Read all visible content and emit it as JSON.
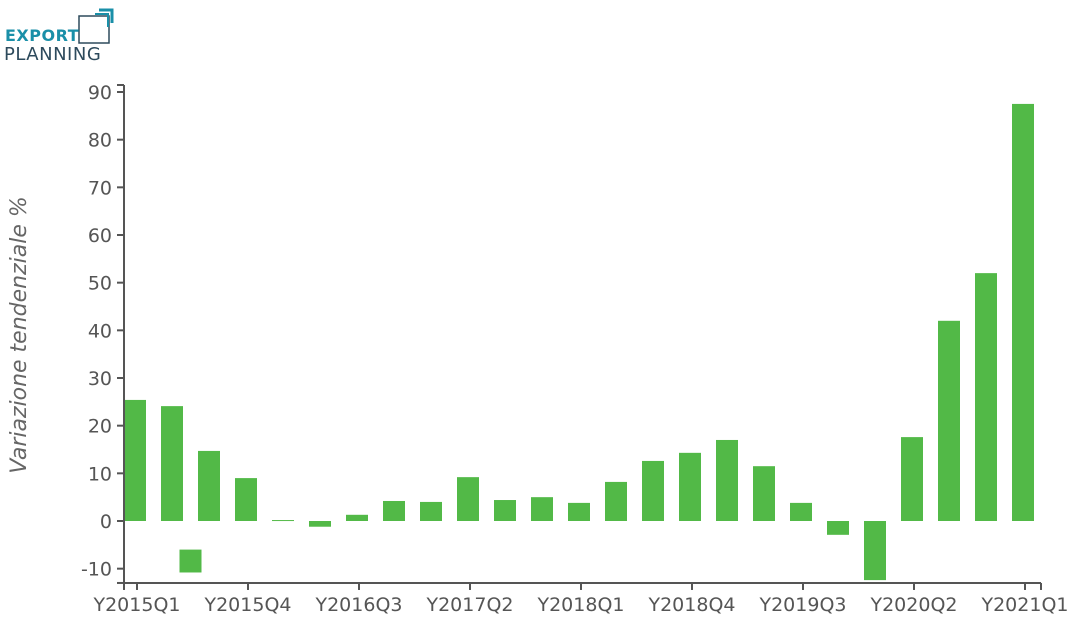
{
  "logo": {
    "line1": "EXPORT",
    "line2": "PLANNING"
  },
  "chart_data": {
    "type": "bar",
    "title": "",
    "xlabel": "",
    "ylabel": "Variazione tendenziale %",
    "ylim": [
      -13,
      92
    ],
    "yticks": [
      -10,
      0,
      10,
      20,
      30,
      40,
      50,
      60,
      70,
      80,
      90
    ],
    "grid": false,
    "bar_color": "#52b947",
    "categories": [
      "Y2015Q1",
      "Y2015Q2",
      "Y2015Q3",
      "Y2015Q4",
      "Y2016Q1",
      "Y2016Q2",
      "Y2016Q3",
      "Y2016Q4",
      "Y2017Q1",
      "Y2017Q2",
      "Y2017Q3",
      "Y2017Q4",
      "Y2018Q1",
      "Y2018Q2",
      "Y2018Q3",
      "Y2018Q4",
      "Y2019Q1",
      "Y2019Q2",
      "Y2019Q3",
      "Y2019Q4",
      "Y2020Q1",
      "Y2020Q2",
      "Y2020Q3",
      "Y2020Q4",
      "Y2021Q1"
    ],
    "xtick_labels": [
      "Y2015Q1",
      "Y2015Q4",
      "Y2016Q3",
      "Y2017Q2",
      "Y2018Q1",
      "Y2018Q4",
      "Y2019Q3",
      "Y2020Q2",
      "Y2021Q1"
    ],
    "values": [
      25.4,
      24.1,
      14.7,
      9.0,
      0.2,
      -1.2,
      1.3,
      4.2,
      4.0,
      9.2,
      4.4,
      5.0,
      3.8,
      8.2,
      12.6,
      14.3,
      17.0,
      11.5,
      3.8,
      -2.9,
      -12.4,
      17.6,
      42.0,
      52.0,
      87.5
    ],
    "floating_bar": {
      "between": [
        "Y2015Q2",
        "Y2015Q3"
      ],
      "from": -6,
      "to": -10.8
    }
  }
}
